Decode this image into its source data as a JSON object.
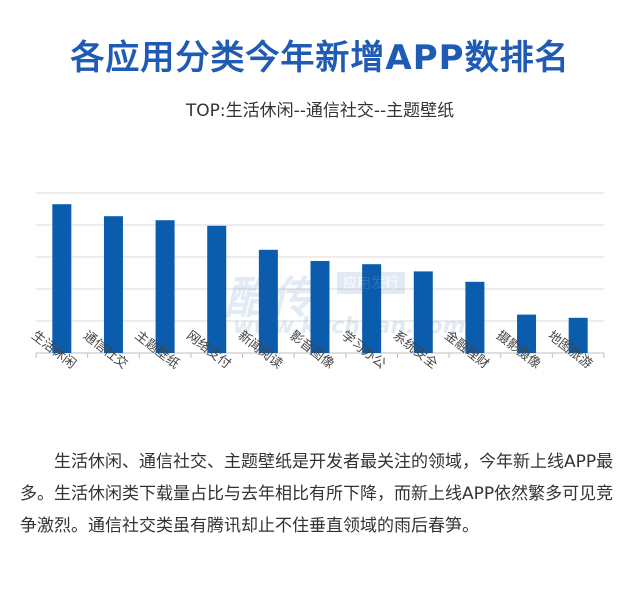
{
  "title": "各应用分类今年新增APP数排名",
  "subtitle": "TOP:生活休闲--通信社交--主题壁纸",
  "watermark": {
    "cn": "酷传",
    "tag": "应用发行",
    "url": "www.kuchuan.com"
  },
  "description": "生活休闲、通信社交、主题壁纸是开发者最关注的领域，今年新上线APP最多。生活休闲类下载量占比与去年相比有所下降，而新上线APP依然繁多可见竞争激烈。通信社交类虽有腾讯却止不住垂直领域的雨后春笋。",
  "colors": {
    "accent": "#1e5bb4",
    "bar": "#0b5cad",
    "grid": "#d9d9d9"
  },
  "chart_data": {
    "type": "bar",
    "categories": [
      "生活休闲",
      "通信社交",
      "主题壁纸",
      "网络支付",
      "新闻阅读",
      "影音图像",
      "学习办公",
      "系统安全",
      "金融理财",
      "摄影摄像",
      "地图旅游"
    ],
    "values": [
      93,
      85.5,
      83,
      79.5,
      64.5,
      57.5,
      55.5,
      51,
      44.5,
      24,
      22
    ],
    "ylim": [
      0,
      100
    ],
    "grid": true,
    "xlabel": "",
    "ylabel": ""
  }
}
